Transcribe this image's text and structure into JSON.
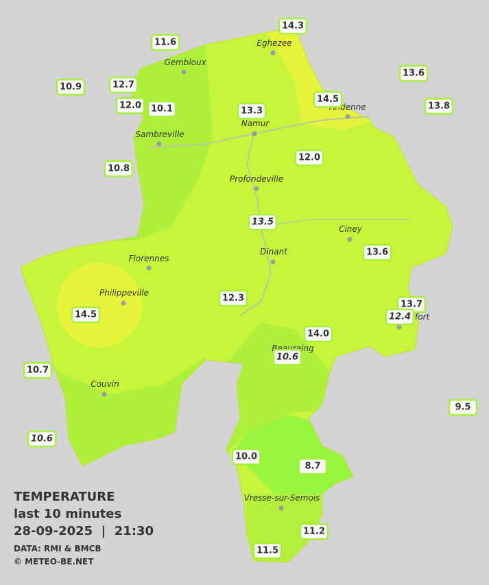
{
  "title": "TEMPERATURE",
  "subtitle": "last 10 minutes",
  "datetime": "28-09-2025  |  21:30",
  "source": "DATA: RMI & BMCB",
  "copyright": "© METEO-BE.NET",
  "cities": [
    "Eghezee",
    "Gembloux",
    "Andenne",
    "Sambreville",
    "Namur",
    "Profondeville",
    "Ciney",
    "Dinant",
    "Florennes",
    "Philippeville",
    "Rochefort",
    "Beauraing",
    "Couvin",
    "Vresse-sur-Semois"
  ],
  "stations": [
    "14.3",
    "11.6",
    "13.6",
    "10.9",
    "12.7",
    "14.5",
    "12.0",
    "10.1",
    "13.3",
    "13.8",
    "12.0",
    "10.8",
    "13.5",
    "13.6",
    "12.3",
    "13.7",
    "14.5",
    "12.4",
    "14.0",
    "10.6",
    "10.7",
    "9.5",
    "10.6",
    "10.0",
    "8.7",
    "11.2",
    "11.5"
  ]
}
